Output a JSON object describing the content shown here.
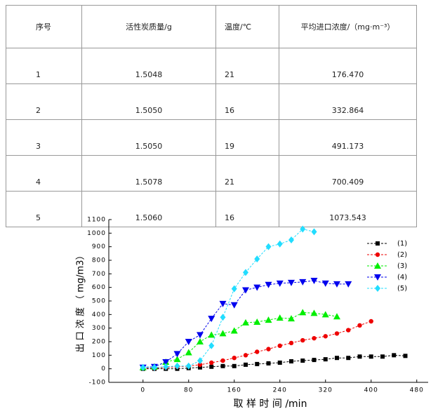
{
  "table": {
    "header": [
      "序号",
      "活性炭质量/g",
      "温度/℃",
      "平均进口浓度/（mg·m⁻³）"
    ],
    "rows": [
      [
        "1",
        "1.5048",
        "21",
        "176.470"
      ],
      [
        "2",
        "1.5050",
        "16",
        "332.864"
      ],
      [
        "3",
        "1.5050",
        "19",
        "491.173"
      ],
      [
        "4",
        "1.5078",
        "21",
        "700.409"
      ],
      [
        "5",
        "1.5060",
        "16",
        "1073.543"
      ]
    ]
  },
  "chart_data": {
    "type": "line",
    "x_label": "取 样 时 间 /min",
    "y_label": "出 口 浓 度 （ mg/m3）",
    "xlim": [
      -60,
      500
    ],
    "xticks": [
      0,
      80,
      160,
      240,
      320,
      400,
      480
    ],
    "ylim": [
      -100,
      1100
    ],
    "yticks": [
      -100,
      0,
      100,
      200,
      300,
      400,
      500,
      600,
      700,
      800,
      900,
      1000,
      1100
    ],
    "series": [
      {
        "name": "(1)",
        "color": "#000000",
        "marker": "square",
        "x": [
          0,
          20,
          40,
          60,
          80,
          100,
          120,
          140,
          160,
          180,
          200,
          220,
          240,
          260,
          280,
          300,
          320,
          340,
          360,
          380,
          400,
          420,
          440,
          460
        ],
        "values": [
          0,
          0,
          0,
          0,
          5,
          10,
          15,
          20,
          20,
          30,
          35,
          40,
          45,
          55,
          60,
          65,
          70,
          80,
          80,
          90,
          90,
          90,
          100,
          95
        ]
      },
      {
        "name": "(2)",
        "color": "#ee0000",
        "marker": "circle",
        "x": [
          0,
          20,
          40,
          60,
          80,
          100,
          120,
          140,
          160,
          180,
          200,
          220,
          240,
          260,
          280,
          300,
          320,
          340,
          360,
          380,
          400
        ],
        "values": [
          5,
          5,
          10,
          15,
          20,
          30,
          45,
          60,
          80,
          100,
          125,
          145,
          170,
          190,
          210,
          225,
          240,
          260,
          285,
          320,
          350
        ]
      },
      {
        "name": "(3)",
        "color": "#00ee00",
        "marker": "triangle-up",
        "x": [
          0,
          20,
          40,
          60,
          80,
          100,
          120,
          140,
          160,
          180,
          200,
          220,
          240,
          260,
          280,
          300,
          320,
          340
        ],
        "values": [
          10,
          15,
          50,
          70,
          120,
          200,
          250,
          260,
          280,
          340,
          345,
          360,
          375,
          370,
          415,
          410,
          400,
          385
        ]
      },
      {
        "name": "(4)",
        "color": "#0000ee",
        "marker": "triangle-down",
        "x": [
          0,
          20,
          40,
          60,
          80,
          100,
          120,
          140,
          160,
          180,
          200,
          220,
          240,
          260,
          280,
          300,
          320,
          340,
          360
        ],
        "values": [
          10,
          15,
          50,
          110,
          200,
          250,
          370,
          480,
          470,
          580,
          600,
          620,
          630,
          635,
          640,
          650,
          630,
          625,
          625
        ]
      },
      {
        "name": "(5)",
        "color": "#22ddff",
        "marker": "diamond",
        "x": [
          0,
          20,
          40,
          60,
          80,
          100,
          120,
          140,
          160,
          180,
          200,
          220,
          240,
          260,
          280,
          300
        ],
        "values": [
          10,
          10,
          15,
          20,
          20,
          60,
          170,
          380,
          590,
          710,
          810,
          900,
          920,
          950,
          1030,
          1010
        ]
      }
    ]
  }
}
